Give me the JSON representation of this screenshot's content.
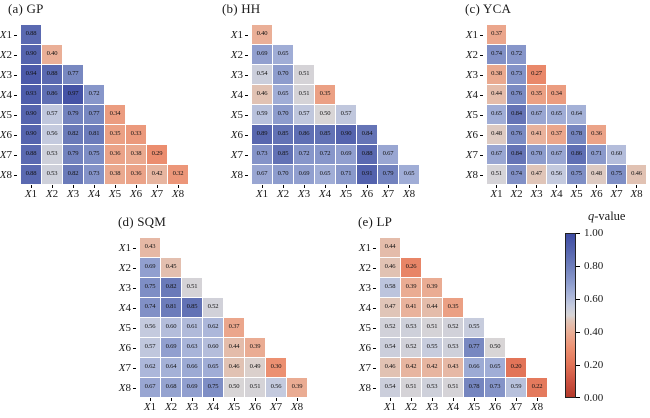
{
  "figure": {
    "background": "#ffffff",
    "text_color": "#1a1a1a"
  },
  "colorbar": {
    "title": "q-value",
    "tick_labels": [
      "1.00",
      "0.80",
      "0.60",
      "0.40",
      "0.20",
      "0.00"
    ],
    "range": [
      0,
      1
    ],
    "orientation": "vertical"
  },
  "colors": {
    "top_blue": "#3e4ca3",
    "mid_gray": "#d8d5d6",
    "bottom_red": "#b43a2a",
    "colormap_stops": [
      {
        "q": 0.0,
        "color": "#b43a2a"
      },
      {
        "q": 0.1,
        "color": "#cd5342"
      },
      {
        "q": 0.2,
        "color": "#e27458"
      },
      {
        "q": 0.3,
        "color": "#ec9071"
      },
      {
        "q": 0.4,
        "color": "#eaaf97"
      },
      {
        "q": 0.47,
        "color": "#e0c5b8"
      },
      {
        "q": 0.5,
        "color": "#d8d5d6"
      },
      {
        "q": 0.56,
        "color": "#c4cade"
      },
      {
        "q": 0.63,
        "color": "#a8b4d9"
      },
      {
        "q": 0.7,
        "color": "#8d9ccd"
      },
      {
        "q": 0.8,
        "color": "#6f7fbc"
      },
      {
        "q": 0.9,
        "color": "#5564ae"
      },
      {
        "q": 1.0,
        "color": "#3e4ca3"
      }
    ]
  },
  "chart_data": [
    {
      "type": "heatmap",
      "title": "(a) GP",
      "triangle": "lower",
      "value_label": "q-value",
      "x_categories": [
        "X1",
        "X2",
        "X3",
        "X4",
        "X5",
        "X6",
        "X7",
        "X8"
      ],
      "y_categories": [
        "X1",
        "X2",
        "X3",
        "X4",
        "X5",
        "X6",
        "X7",
        "X8"
      ],
      "rows": [
        [
          0.88
        ],
        [
          0.9,
          0.4
        ],
        [
          0.94,
          0.88,
          0.77
        ],
        [
          0.93,
          0.86,
          0.97,
          0.72
        ],
        [
          0.9,
          0.57,
          0.79,
          0.77,
          0.34
        ],
        [
          0.9,
          0.56,
          0.82,
          0.81,
          0.35,
          0.33
        ],
        [
          0.88,
          0.53,
          0.79,
          0.75,
          0.36,
          0.38,
          0.29
        ],
        [
          0.88,
          0.53,
          0.82,
          0.73,
          0.38,
          0.36,
          0.42,
          0.32
        ]
      ]
    },
    {
      "type": "heatmap",
      "title": "(b) HH",
      "triangle": "lower",
      "value_label": "q-value",
      "x_categories": [
        "X1",
        "X2",
        "X3",
        "X4",
        "X5",
        "X6",
        "X7",
        "X8"
      ],
      "y_categories": [
        "X1",
        "X2",
        "X3",
        "X4",
        "X5",
        "X6",
        "X7",
        "X8"
      ],
      "rows": [
        [
          0.4
        ],
        [
          0.69,
          0.65
        ],
        [
          0.54,
          0.7,
          0.51
        ],
        [
          0.46,
          0.65,
          0.51,
          0.35
        ],
        [
          0.59,
          0.7,
          0.57,
          0.5,
          0.57
        ],
        [
          0.89,
          0.85,
          0.86,
          0.85,
          0.9,
          0.84
        ],
        [
          0.73,
          0.85,
          0.72,
          0.72,
          0.69,
          0.88,
          0.67
        ],
        [
          0.67,
          0.7,
          0.69,
          0.65,
          0.71,
          0.91,
          0.79,
          0.65
        ]
      ]
    },
    {
      "type": "heatmap",
      "title": "(c) YCA",
      "triangle": "lower",
      "value_label": "q-value",
      "x_categories": [
        "X1",
        "X2",
        "X3",
        "X4",
        "X5",
        "X6",
        "X7",
        "X8"
      ],
      "y_categories": [
        "X1",
        "X2",
        "X3",
        "X4",
        "X5",
        "X6",
        "X7",
        "X8"
      ],
      "rows": [
        [
          0.37
        ],
        [
          0.74,
          0.72
        ],
        [
          0.38,
          0.73,
          0.27
        ],
        [
          0.44,
          0.76,
          0.35,
          0.34
        ],
        [
          0.65,
          0.84,
          0.67,
          0.65,
          0.64
        ],
        [
          0.48,
          0.76,
          0.41,
          0.37,
          0.78,
          0.36
        ],
        [
          0.67,
          0.84,
          0.7,
          0.67,
          0.86,
          0.71,
          0.6
        ],
        [
          0.51,
          0.74,
          0.47,
          0.56,
          0.75,
          0.48,
          0.75,
          0.46
        ]
      ]
    },
    {
      "type": "heatmap",
      "title": "(d) SQM",
      "triangle": "lower",
      "value_label": "q-value",
      "x_categories": [
        "X1",
        "X2",
        "X3",
        "X4",
        "X5",
        "X6",
        "X7",
        "X8"
      ],
      "y_categories": [
        "X1",
        "X2",
        "X3",
        "X4",
        "X5",
        "X6",
        "X7",
        "X8"
      ],
      "rows": [
        [
          0.43
        ],
        [
          0.69,
          0.45
        ],
        [
          0.75,
          0.82,
          0.51
        ],
        [
          0.74,
          0.81,
          0.85,
          0.52
        ],
        [
          0.56,
          0.6,
          0.61,
          0.62,
          0.37
        ],
        [
          0.57,
          0.69,
          0.63,
          0.6,
          0.44,
          0.39
        ],
        [
          0.62,
          0.64,
          0.66,
          0.65,
          0.46,
          0.49,
          0.3
        ],
        [
          0.67,
          0.68,
          0.69,
          0.75,
          0.5,
          0.51,
          0.56,
          0.39
        ]
      ]
    },
    {
      "type": "heatmap",
      "title": "(e) LP",
      "triangle": "lower",
      "value_label": "q-value",
      "x_categories": [
        "X1",
        "X2",
        "X3",
        "X4",
        "X5",
        "X6",
        "X7",
        "X8"
      ],
      "y_categories": [
        "X1",
        "X2",
        "X3",
        "X4",
        "X5",
        "X6",
        "X7",
        "X8"
      ],
      "rows": [
        [
          0.44
        ],
        [
          0.46,
          0.26
        ],
        [
          0.58,
          0.39,
          0.39
        ],
        [
          0.47,
          0.41,
          0.44,
          0.35
        ],
        [
          0.52,
          0.53,
          0.51,
          0.52,
          0.55
        ],
        [
          0.54,
          0.52,
          0.55,
          0.53,
          0.77,
          0.5
        ],
        [
          0.46,
          0.42,
          0.42,
          0.43,
          0.66,
          0.65,
          0.2
        ],
        [
          0.54,
          0.51,
          0.53,
          0.51,
          0.78,
          0.73,
          0.59,
          0.22
        ]
      ]
    }
  ]
}
